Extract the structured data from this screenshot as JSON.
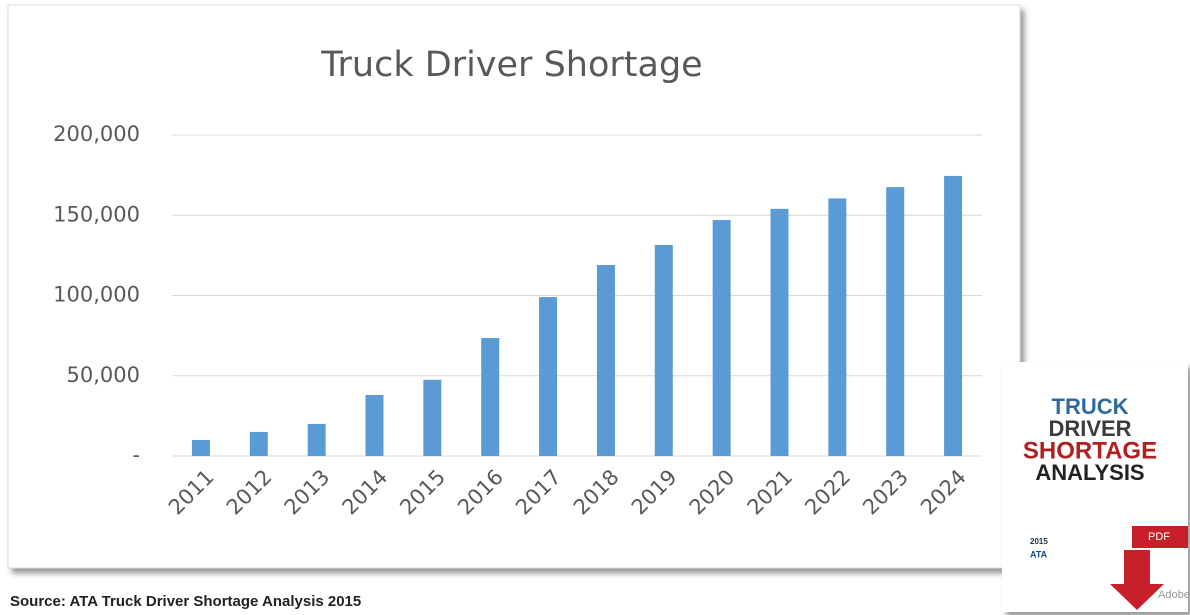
{
  "chart_data": {
    "type": "bar",
    "title": "Truck Driver Shortage",
    "categories": [
      "2011",
      "2012",
      "2013",
      "2014",
      "2015",
      "2016",
      "2017",
      "2018",
      "2019",
      "2020",
      "2021",
      "2022",
      "2023",
      "2024"
    ],
    "values": [
      10000,
      15000,
      20000,
      38000,
      47500,
      73500,
      99000,
      119000,
      131500,
      147000,
      154000,
      160500,
      167500,
      174500
    ],
    "color": "#5b9bd5",
    "ylim": [
      0,
      200000
    ],
    "yticks": [
      {
        "value": 0,
        "label": "-"
      },
      {
        "value": 50000,
        "label": "50,000"
      },
      {
        "value": 100000,
        "label": "100,000"
      },
      {
        "value": 150000,
        "label": "150,000"
      },
      {
        "value": 200000,
        "label": "200,000"
      }
    ],
    "grid": true
  },
  "source": "Source: ATA Truck Driver Shortage Analysis 2015",
  "thumbnail": {
    "title_lines": [
      "TRUCK",
      "DRIVER",
      "SHORTAGE",
      "ANALYSIS"
    ],
    "year": "2015",
    "org": "ATA",
    "badge": "PDF",
    "brand": "Adobe"
  }
}
